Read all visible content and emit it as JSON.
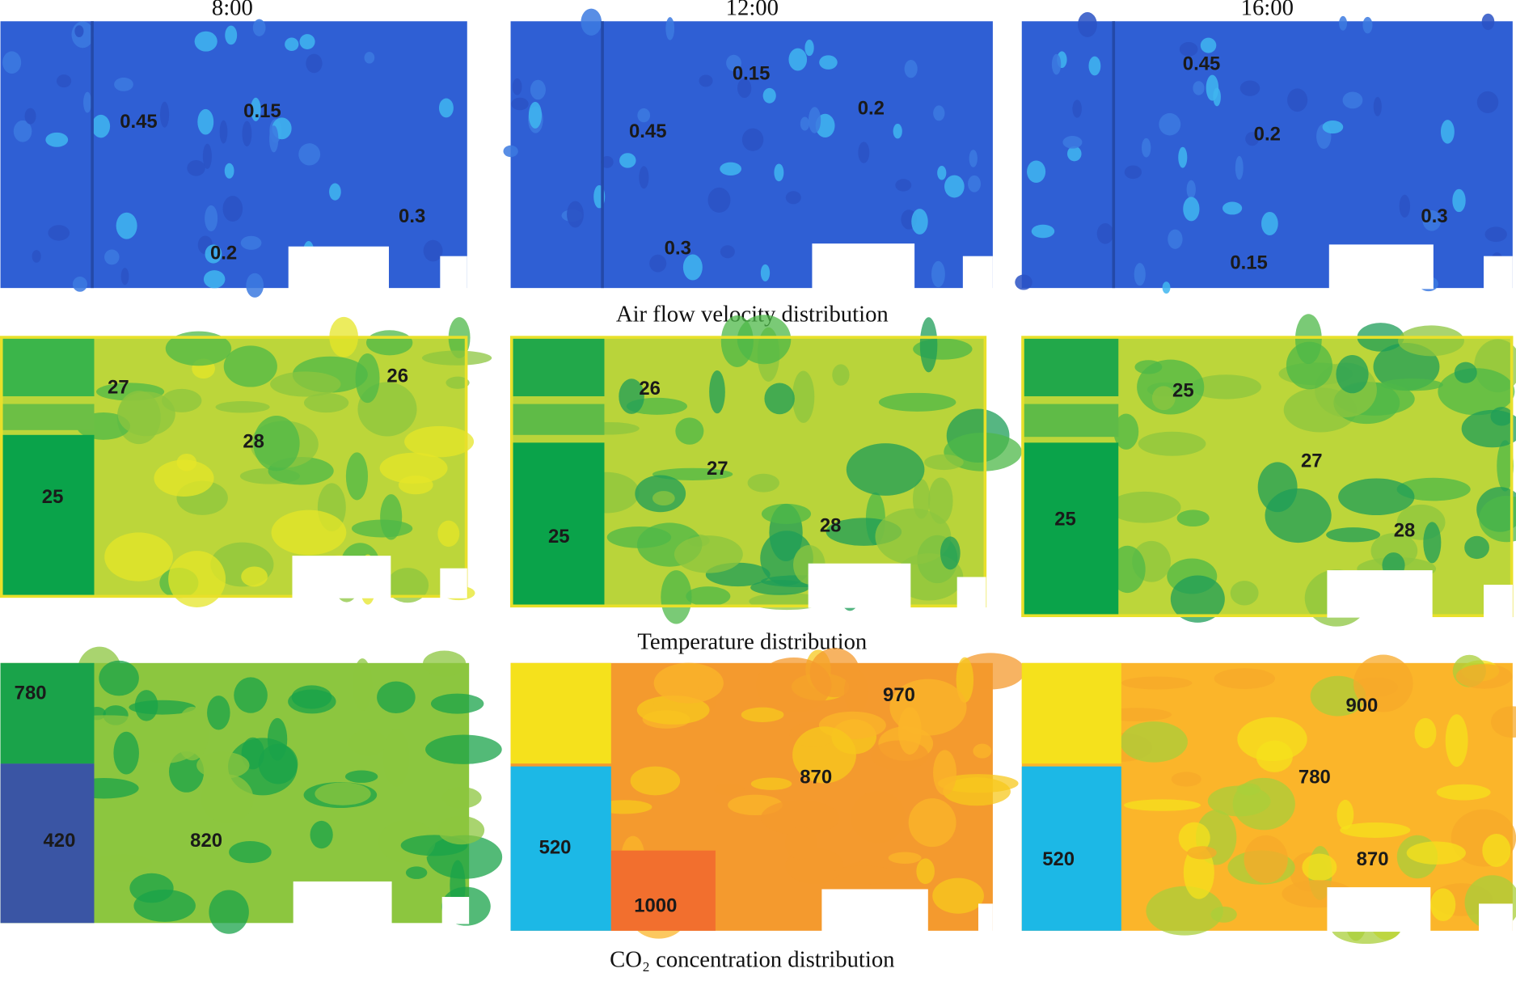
{
  "columns": [
    "8:00",
    "12:00",
    "16:00"
  ],
  "rows": [
    {
      "caption": "Air flow velocity distribution",
      "panels": [
        {
          "labels": [
            "0.45",
            "0.15",
            "0.2",
            "0.3"
          ]
        },
        {
          "labels": [
            "0.15",
            "0.2",
            "0.45",
            "0.3"
          ]
        },
        {
          "labels": [
            "0.45",
            "0.2",
            "0.3",
            "0.15"
          ]
        }
      ]
    },
    {
      "caption": "Temperature distribution",
      "panels": [
        {
          "labels": [
            "27",
            "26",
            "28",
            "25"
          ]
        },
        {
          "labels": [
            "26",
            "27",
            "28",
            "25"
          ]
        },
        {
          "labels": [
            "25",
            "27",
            "25",
            "28"
          ]
        }
      ]
    },
    {
      "caption": "CO₂ concentration distribution",
      "panels": [
        {
          "labels": [
            "780",
            "420",
            "820"
          ]
        },
        {
          "labels": [
            "970",
            "870",
            "520",
            "1000"
          ]
        },
        {
          "labels": [
            "900",
            "780",
            "520",
            "870"
          ]
        }
      ]
    }
  ]
}
